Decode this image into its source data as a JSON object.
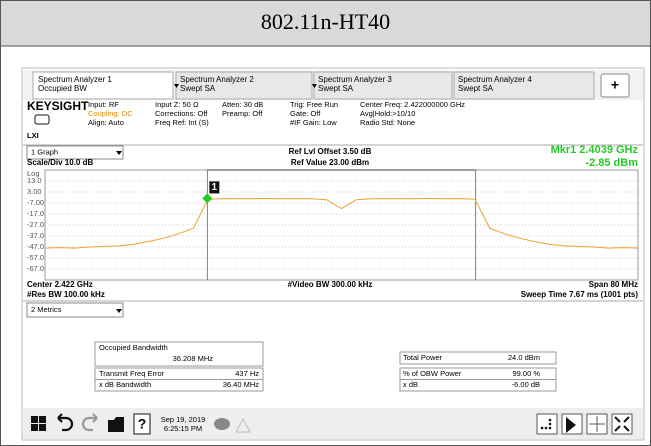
{
  "header": {
    "title": "802.11n-HT40"
  },
  "tabs": [
    {
      "line1": "Spectrum Analyzer 1",
      "line2": "Occupied BW"
    },
    {
      "line1": "Spectrum Analyzer 2",
      "line2": "Swept SA"
    },
    {
      "line1": "Spectrum Analyzer 3",
      "line2": "Swept SA"
    },
    {
      "line1": "Spectrum Analyzer 4",
      "line2": "Swept SA"
    }
  ],
  "add_tab": "+",
  "info": {
    "brand": "KEYSIGHT",
    "lxi": "LXI",
    "col1": [
      "Input: RF",
      "Coupling: DC",
      "Align: Auto"
    ],
    "col2": [
      "Input Z: 50 Ω",
      "Corrections: Off",
      "Freq Ref: Int (S)"
    ],
    "col3": [
      "Atten: 30 dB",
      "Preamp: Off"
    ],
    "col4": [
      "Trig: Free Run",
      "Gate: Off",
      "#IF Gain: Low"
    ],
    "col5": [
      "Center Freq: 2.422000000 GHz",
      "Avg|Hold:>10/10",
      "Radio Std: None"
    ]
  },
  "graph": {
    "dropdown": "1 Graph",
    "ref_offset": "Ref Lvl Offset 3.50 dB",
    "ref_value": "Ref Value 23.00 dBm",
    "scale": "Scale/Div 10.0 dB",
    "marker_freq": "Mkr1  2.4039 GHz",
    "marker_level": "-2.85 dBm",
    "center": "Center 2.422 GHz",
    "video_bw": "#Video BW 300.00 kHz",
    "span": "Span 80 MHz",
    "res_bw": "#Res BW 100.00 kHz",
    "sweep": "Sweep Time 7.67 ms (1001 pts)"
  },
  "chart_data": {
    "type": "line",
    "y_scale_label": "Log",
    "color": "#f0a030",
    "xlim": [
      2.382,
      2.462
    ],
    "ylim": [
      -77,
      23
    ],
    "yticks": [
      {
        "value": 13,
        "label": "13.0"
      },
      {
        "value": 3,
        "label": "3.00"
      },
      {
        "value": -7,
        "label": "-7.00"
      },
      {
        "value": -17,
        "label": "-17.0"
      },
      {
        "value": -27,
        "label": "-27.0"
      },
      {
        "value": -37,
        "label": "-37.0"
      },
      {
        "value": -47,
        "label": "-47.0"
      },
      {
        "value": -57,
        "label": "-57.0"
      },
      {
        "value": -67,
        "label": "-67.0"
      }
    ],
    "grid": true,
    "x": [
      2.382,
      2.384,
      2.386,
      2.388,
      2.39,
      2.392,
      2.394,
      2.396,
      2.398,
      2.4,
      2.402,
      2.404,
      2.406,
      2.408,
      2.41,
      2.412,
      2.414,
      2.416,
      2.418,
      2.42,
      2.422,
      2.424,
      2.426,
      2.428,
      2.43,
      2.432,
      2.434,
      2.436,
      2.438,
      2.44,
      2.442,
      2.444,
      2.446,
      2.448,
      2.45,
      2.452,
      2.454,
      2.456,
      2.458,
      2.46,
      2.462
    ],
    "values": [
      -48,
      -47.5,
      -48,
      -47,
      -46.5,
      -46,
      -44.5,
      -42,
      -39,
      -35,
      -30,
      -3.5,
      -3,
      -3.2,
      -3,
      -2.9,
      -3.1,
      -3,
      -3.2,
      -4,
      -12,
      -4,
      -3.1,
      -3,
      -3.2,
      -3,
      -2.9,
      -3.1,
      -3,
      -3.5,
      -30,
      -35,
      -39,
      -42,
      -44.5,
      -46,
      -46.5,
      -47,
      -48,
      -47.5,
      -48
    ],
    "obw_edges": [
      2.4039,
      2.4401
    ],
    "marker": {
      "label": "1",
      "x": 2.4039,
      "y": -2.85,
      "color": "#22cc22"
    }
  },
  "metrics": {
    "dropdown": "2 Metrics",
    "occupied_bandwidth": {
      "label": "Occupied Bandwidth",
      "value": "36.208 MHz"
    },
    "rows_left": [
      [
        "Transmit Freq Error",
        "437 Hz"
      ],
      [
        "x dB Bandwidth",
        "36.40 MHz"
      ]
    ],
    "total_power": {
      "label": "Total Power",
      "value": "24.0 dBm"
    },
    "rows_right": [
      [
        "% of OBW Power",
        "99.00 %"
      ],
      [
        "x dB",
        "-6.00 dB"
      ]
    ]
  },
  "taskbar": {
    "help": "?",
    "date": "Sep 19, 2019",
    "time": "6:25:15 PM"
  }
}
